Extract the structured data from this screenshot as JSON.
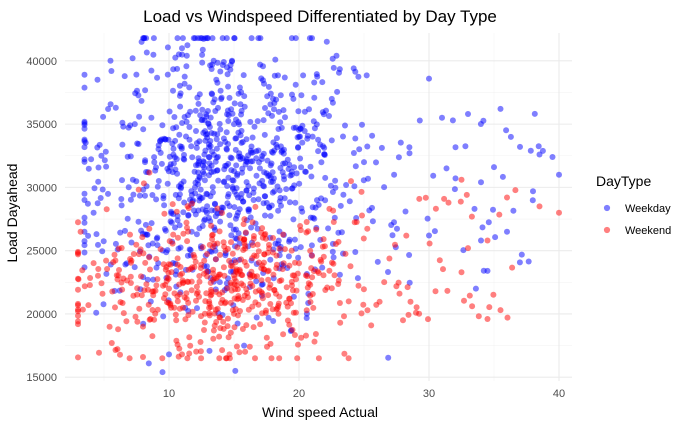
{
  "chart_data": {
    "type": "scatter",
    "title": "Load vs Windspeed Differentiated by Day Type",
    "xlabel": "Wind speed Actual",
    "ylabel": "Load Dayahead",
    "xlim": [
      2,
      41
    ],
    "ylim": [
      14700,
      42200
    ],
    "x_ticks": [
      10,
      20,
      30,
      40
    ],
    "y_ticks": [
      15000,
      20000,
      25000,
      30000,
      35000,
      40000
    ],
    "grid": true,
    "legend": {
      "title": "DayType",
      "placement": "right"
    },
    "series": [
      {
        "name": "Weekday",
        "color": "#0000ff",
        "point_count": 900,
        "sample_points": [
          [
            12.8,
            41800
          ],
          [
            11.0,
            41000
          ],
          [
            5.5,
            40000
          ],
          [
            4.5,
            38500
          ],
          [
            30.0,
            38600
          ],
          [
            35.5,
            36200
          ],
          [
            33.0,
            35800
          ],
          [
            31.0,
            35500
          ],
          [
            37.0,
            33200
          ],
          [
            38.5,
            32600
          ],
          [
            39.5,
            32400
          ],
          [
            35.0,
            31600
          ],
          [
            40.0,
            31000
          ],
          [
            34.0,
            30400
          ],
          [
            38.0,
            29700
          ],
          [
            33.5,
            28300
          ],
          [
            36.0,
            26500
          ],
          [
            34.0,
            25800
          ],
          [
            34.5,
            23400
          ],
          [
            30.0,
            26200
          ],
          [
            10.0,
            16800
          ],
          [
            9.5,
            15400
          ],
          [
            3.5,
            27200
          ],
          [
            4.2,
            28000
          ],
          [
            4.8,
            32500
          ],
          [
            15.0,
            35000
          ],
          [
            20.0,
            34000
          ],
          [
            25.0,
            32000
          ],
          [
            12.0,
            30000
          ],
          [
            18.0,
            37000
          ]
        ]
      },
      {
        "name": "Weekend",
        "color": "#ff0000",
        "point_count": 550,
        "sample_points": [
          [
            3.2,
            26500
          ],
          [
            3.0,
            24900
          ],
          [
            3.8,
            20700
          ],
          [
            5.6,
            17700
          ],
          [
            8.0,
            16600
          ],
          [
            11.0,
            16800
          ],
          [
            40.0,
            28000
          ],
          [
            38.5,
            28500
          ],
          [
            36.0,
            29200
          ],
          [
            34.5,
            25800
          ],
          [
            35.5,
            20300
          ],
          [
            34.5,
            19600
          ],
          [
            32.5,
            23300
          ],
          [
            28.0,
            19500
          ],
          [
            30.5,
            21800
          ],
          [
            33.0,
            25200
          ],
          [
            31.5,
            28800
          ],
          [
            32.5,
            30600
          ],
          [
            24.0,
            30500
          ],
          [
            29.0,
            20100
          ],
          [
            10.0,
            22000
          ],
          [
            15.0,
            20000
          ],
          [
            20.0,
            24000
          ],
          [
            18.0,
            26000
          ],
          [
            8.0,
            19000
          ]
        ]
      }
    ]
  }
}
